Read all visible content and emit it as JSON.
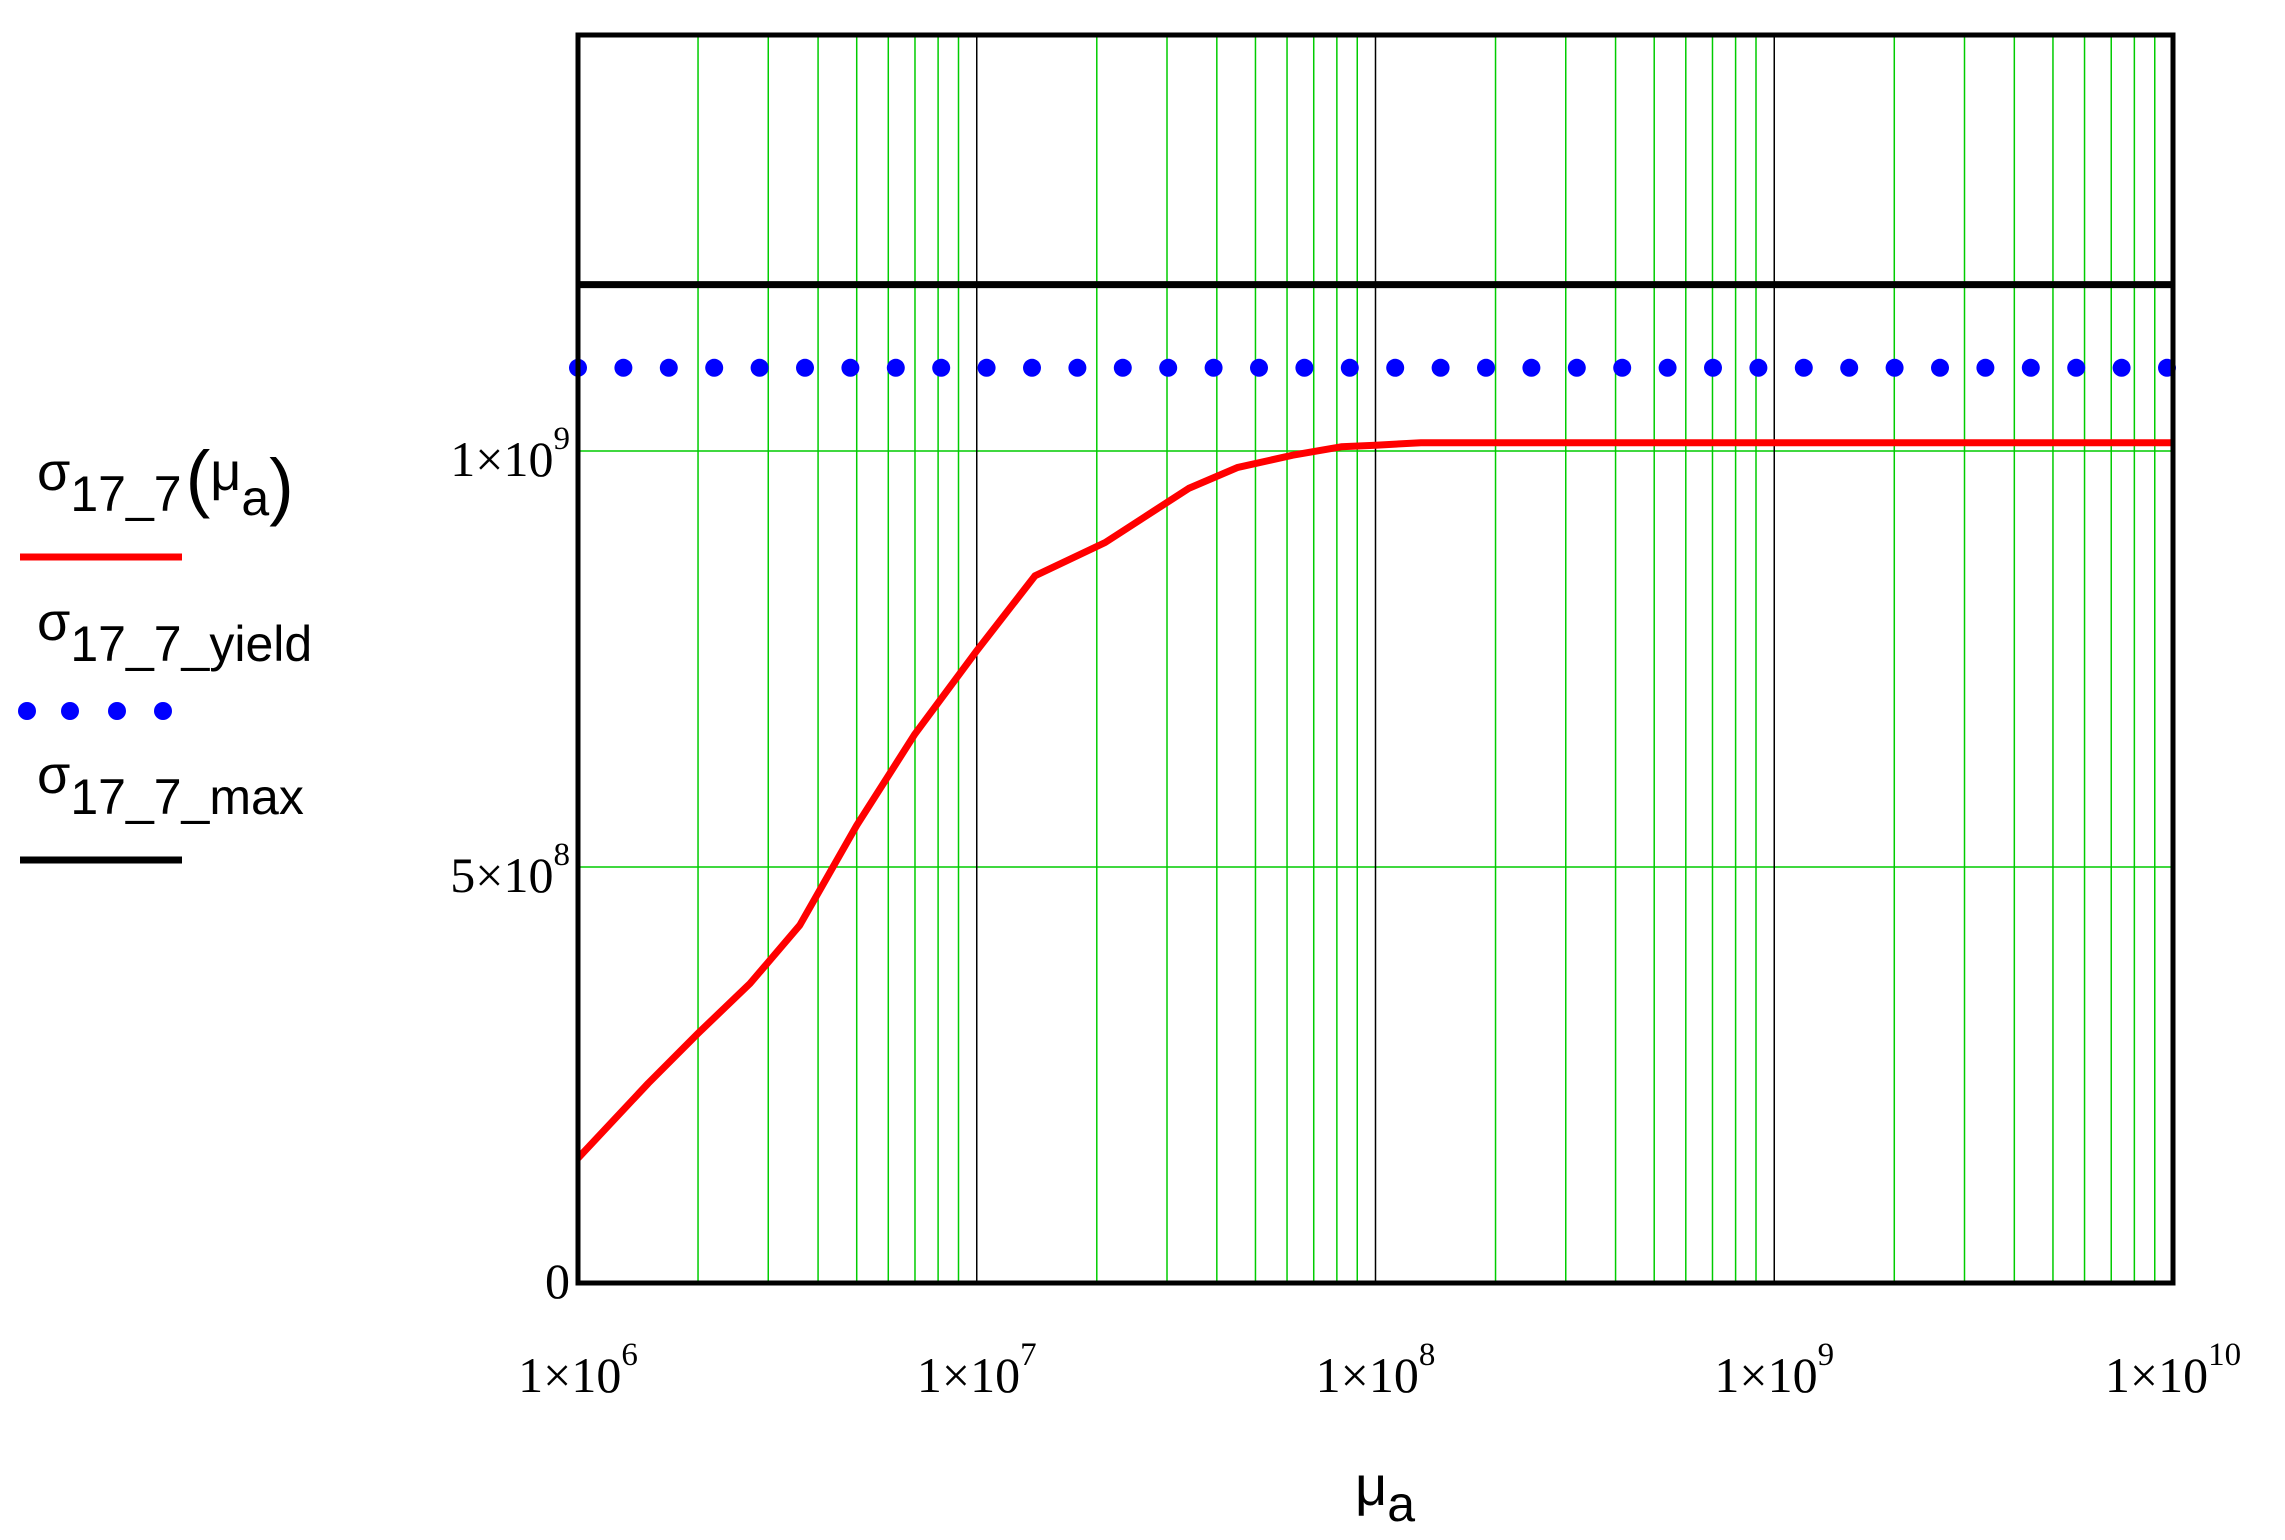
{
  "chart_data": {
    "type": "line",
    "title": "",
    "x_scale": "log",
    "y_scale": "linear",
    "xlim": [
      1000000,
      10000000000
    ],
    "ylim": [
      0,
      1500000000
    ],
    "grid": true,
    "grid_color_major": "#000000",
    "grid_color_minor": "#00cc00",
    "legend_position": "left",
    "xlabel": {
      "symbol": "μ",
      "subscript": "a"
    },
    "x_ticks": [
      {
        "value": 1000000,
        "mantissa": "1×10",
        "exponent": "6"
      },
      {
        "value": 10000000,
        "mantissa": "1×10",
        "exponent": "7"
      },
      {
        "value": 100000000,
        "mantissa": "1×10",
        "exponent": "8"
      },
      {
        "value": 1000000000,
        "mantissa": "1×10",
        "exponent": "9"
      },
      {
        "value": 10000000000,
        "mantissa": "1×10",
        "exponent": "10"
      }
    ],
    "y_ticks": [
      {
        "value": 0,
        "mantissa": "0",
        "exponent": ""
      },
      {
        "value": 500000000,
        "mantissa": "5×10",
        "exponent": "8"
      },
      {
        "value": 1000000000,
        "mantissa": "1×10",
        "exponent": "9"
      }
    ],
    "series": [
      {
        "name": "σ17_7(μa)",
        "legend": {
          "symbol": "σ",
          "subscript": "17_7",
          "arg_symbol": "μ",
          "arg_subscript": "a"
        },
        "color": "#ff0000",
        "style": "solid",
        "x": [
          1000000,
          1500000,
          2000000,
          2700000,
          3600000,
          5000000,
          7000000,
          10000000,
          14000000,
          21000000,
          34000000,
          45000000,
          62000000,
          82000000,
          100000000,
          130000000,
          200000000,
          500000000,
          1000000000,
          10000000000
        ],
        "y": [
          150000000,
          240000000,
          300000000,
          360000000,
          430000000,
          550000000,
          660000000,
          760000000,
          850000000,
          890000000,
          955000000,
          980000000,
          995000000,
          1005000000,
          1007000000,
          1010000000,
          1010000000,
          1010000000,
          1010000000,
          1010000000
        ]
      },
      {
        "name": "σ17_7_yield",
        "legend": {
          "symbol": "σ",
          "subscript": "17_7_yield"
        },
        "color": "#0000ff",
        "style": "dotted",
        "x": [
          1000000,
          10000000000
        ],
        "y": [
          1100000000,
          1100000000
        ]
      },
      {
        "name": "σ17_7_max",
        "legend": {
          "symbol": "σ",
          "subscript": "17_7_max"
        },
        "color": "#000000",
        "style": "solid",
        "x": [
          1000000,
          10000000000
        ],
        "y": [
          1200000000,
          1200000000
        ]
      }
    ]
  }
}
